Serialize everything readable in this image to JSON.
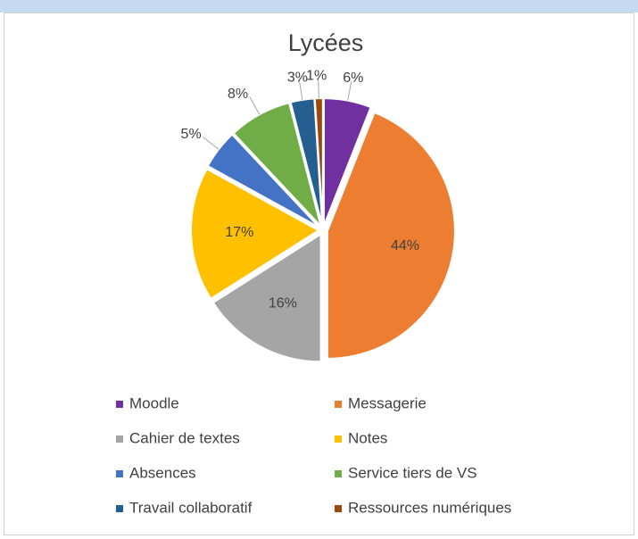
{
  "chart_data": {
    "type": "pie",
    "title": "Lycées",
    "categories": [
      "Moodle",
      "Messagerie",
      "Cahier de textes",
      "Notes",
      "Absences",
      "Service tiers de VS",
      "Travail collaboratif",
      "Ressources numériques"
    ],
    "values": [
      6,
      44,
      16,
      17,
      5,
      8,
      3,
      1
    ],
    "value_labels": [
      "6%",
      "44%",
      "16%",
      "17%",
      "5%",
      "8%",
      "3%",
      "1%"
    ],
    "colors": [
      "#7030a0",
      "#ed7d31",
      "#a5a5a5",
      "#ffc000",
      "#4472c4",
      "#70ad47",
      "#255e91",
      "#9e480e"
    ]
  }
}
